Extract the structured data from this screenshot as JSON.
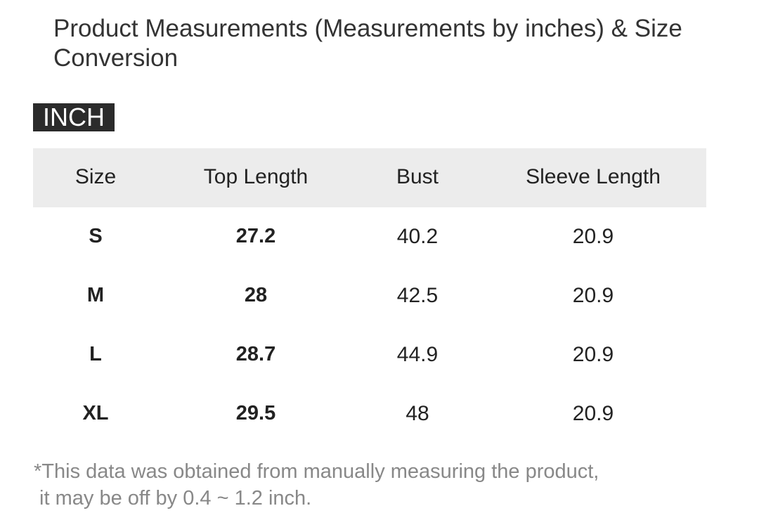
{
  "title": "Product Measurements (Measurements by inches) & Size Conversion",
  "unit": "INCH",
  "headers": [
    "Size",
    "Top Length",
    "Bust",
    "Sleeve Length"
  ],
  "rows": [
    [
      "S",
      "27.2",
      "40.2",
      "20.9"
    ],
    [
      "M",
      "28",
      "42.5",
      "20.9"
    ],
    [
      "L",
      "28.7",
      "44.9",
      "20.9"
    ],
    [
      "XL",
      "29.5",
      "48",
      "20.9"
    ]
  ],
  "note": [
    "*This data was obtained from manually measuring the product,",
    " it may be off by 0.4 ~ 1.2 inch."
  ]
}
